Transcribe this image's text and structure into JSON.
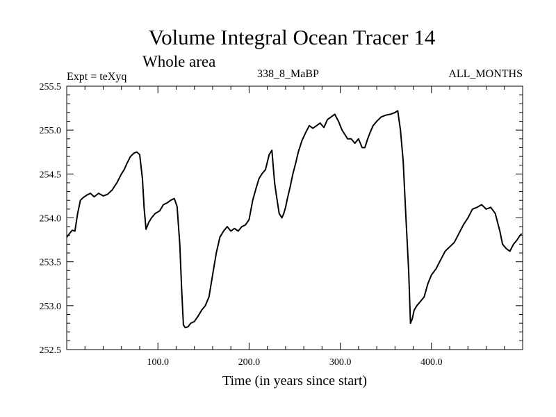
{
  "chart_data": {
    "type": "line",
    "title": "Volume Integral Ocean Tracer 14",
    "subtitle": "Whole area",
    "header_left": "Expt = teXyq",
    "header_center": "338_8_MaBP",
    "header_right": "ALL_MONTHS",
    "xlabel": "Time (in years since start)",
    "ylabel": "",
    "xlim": [
      0,
      500
    ],
    "ylim": [
      252.5,
      255.5
    ],
    "x_ticks": [
      100,
      200,
      300,
      400
    ],
    "x_tick_labels": [
      "100.0",
      "200.0",
      "300.0",
      "400.0"
    ],
    "y_ticks": [
      252.5,
      253.0,
      253.5,
      254.0,
      254.5,
      255.0,
      255.5
    ],
    "y_tick_labels": [
      "252.5",
      "253.0",
      "253.5",
      "254.0",
      "254.5",
      "255.0",
      "255.5"
    ],
    "grid": false,
    "series": [
      {
        "color": "#000000",
        "x": [
          0,
          3,
          6,
          9,
          12,
          15,
          18,
          22,
          26,
          30,
          35,
          40,
          45,
          50,
          55,
          60,
          63,
          66,
          70,
          74,
          77,
          80,
          83,
          85,
          87,
          90,
          93,
          97,
          102,
          106,
          110,
          114,
          118,
          121,
          124,
          126,
          128,
          130,
          133,
          136,
          140,
          144,
          148,
          152,
          156,
          160,
          164,
          168,
          172,
          176,
          180,
          184,
          188,
          192,
          196,
          200,
          204,
          208,
          211,
          214,
          218,
          222,
          225,
          228,
          230,
          233,
          236,
          238,
          240,
          242,
          245,
          248,
          251,
          254,
          258,
          262,
          266,
          270,
          274,
          278,
          282,
          286,
          290,
          294,
          298,
          302,
          305,
          308,
          312,
          316,
          320,
          324,
          327,
          330,
          333,
          336,
          340,
          345,
          350,
          355,
          360,
          363,
          366,
          369,
          372,
          375,
          377,
          379,
          381,
          384,
          388,
          392,
          396,
          400,
          405,
          410,
          415,
          420,
          425,
          430,
          435,
          440,
          445,
          450,
          455,
          460,
          465,
          470,
          475,
          478,
          482,
          486,
          490,
          494,
          497,
          499
        ],
        "y": [
          253.78,
          253.82,
          253.86,
          253.85,
          254.05,
          254.2,
          254.23,
          254.26,
          254.28,
          254.24,
          254.28,
          254.25,
          254.27,
          254.32,
          254.4,
          254.5,
          254.55,
          254.62,
          254.7,
          254.74,
          254.75,
          254.72,
          254.45,
          254.1,
          253.87,
          253.95,
          254.0,
          254.05,
          254.08,
          254.15,
          254.17,
          254.2,
          254.22,
          254.13,
          253.7,
          253.2,
          252.78,
          252.75,
          252.76,
          252.8,
          252.82,
          252.88,
          252.95,
          253.0,
          253.1,
          253.35,
          253.6,
          253.78,
          253.85,
          253.9,
          253.85,
          253.88,
          253.85,
          253.9,
          253.92,
          253.98,
          254.2,
          254.35,
          254.45,
          254.5,
          254.55,
          254.72,
          254.77,
          254.4,
          254.25,
          254.05,
          254.0,
          254.05,
          254.12,
          254.22,
          254.35,
          254.5,
          254.62,
          254.75,
          254.88,
          254.97,
          255.05,
          255.02,
          255.05,
          255.08,
          255.03,
          255.12,
          255.15,
          255.18,
          255.1,
          255.0,
          254.95,
          254.9,
          254.9,
          254.85,
          254.9,
          254.8,
          254.8,
          254.9,
          254.98,
          255.05,
          255.1,
          255.15,
          255.17,
          255.18,
          255.2,
          255.22,
          255.0,
          254.65,
          254.0,
          253.4,
          252.8,
          252.85,
          252.95,
          253.0,
          253.05,
          253.1,
          253.25,
          253.35,
          253.42,
          253.52,
          253.62,
          253.67,
          253.72,
          253.82,
          253.92,
          254.0,
          254.1,
          254.12,
          254.15,
          254.1,
          254.12,
          254.05,
          253.85,
          253.7,
          253.65,
          253.62,
          253.7,
          253.75,
          253.8,
          253.82
        ]
      }
    ]
  }
}
